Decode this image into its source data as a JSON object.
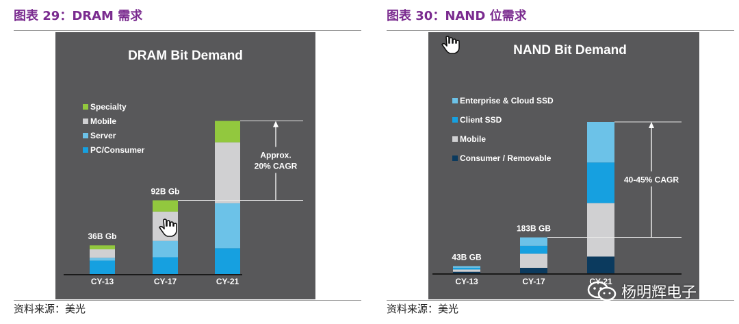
{
  "figures": [
    {
      "heading": "图表 29：DRAM 需求",
      "source": "资料来源：美光"
    },
    {
      "heading": "图表 30：NAND 位需求",
      "source": "资料来源：美光"
    }
  ],
  "watermark": {
    "text": "杨明辉电子",
    "icon": "wechat-logo-icon"
  },
  "cursors": [
    "hand-cursor-icon",
    "hand-cursor-icon"
  ],
  "chart_data": [
    {
      "type": "bar",
      "stacked": true,
      "title": "DRAM Bit Demand",
      "categories": [
        "CY-13",
        "CY-17",
        "CY-21"
      ],
      "series": [
        {
          "name": "PC/Consumer",
          "color": "#16a0e0",
          "values": [
            25,
            31,
            47
          ]
        },
        {
          "name": "Server",
          "color": "#6cc2e8",
          "values": [
            5,
            29,
            80
          ]
        },
        {
          "name": "Mobile",
          "color": "#d0d0d2",
          "values": [
            15,
            52,
            108
          ]
        },
        {
          "name": "Specialty",
          "color": "#92c83e",
          "values": [
            7,
            20,
            38
          ]
        }
      ],
      "total_labels": [
        "36B Gb",
        "92B Gb",
        ""
      ],
      "legend_order": [
        "Specialty",
        "Mobile",
        "Server",
        "PC/Consumer"
      ],
      "legend_position": "left",
      "annotation": {
        "lines": [
          "Approx.",
          "20% CAGR"
        ],
        "from": "CY-17",
        "to": "CY-21"
      },
      "ylim": [
        0,
        270
      ],
      "grid": false
    },
    {
      "type": "bar",
      "stacked": true,
      "title": "NAND Bit Demand",
      "categories": [
        "CY-13",
        "CY-17",
        "CY-21"
      ],
      "series": [
        {
          "name": "Consumer / Removable",
          "color": "#0b3a5e",
          "values": [
            4,
            11,
            31
          ]
        },
        {
          "name": "Mobile",
          "color": "#d0d0d2",
          "values": [
            4,
            25,
            95
          ]
        },
        {
          "name": "Client SSD",
          "color": "#16a0e0",
          "values": [
            3,
            14,
            72
          ]
        },
        {
          "name": "Enterprise & Cloud SSD",
          "color": "#6cc2e8",
          "values": [
            3,
            15,
            72
          ]
        }
      ],
      "total_labels": [
        "43B GB",
        "183B GB",
        ""
      ],
      "legend_order": [
        "Enterprise & Cloud SSD",
        "Client SSD",
        "Mobile",
        "Consumer / Removable"
      ],
      "legend_position": "left",
      "annotation": {
        "lines": [
          "40-45% CAGR"
        ],
        "from": "CY-17",
        "to": "CY-21"
      },
      "ylim": [
        0,
        270
      ],
      "grid": false
    }
  ]
}
